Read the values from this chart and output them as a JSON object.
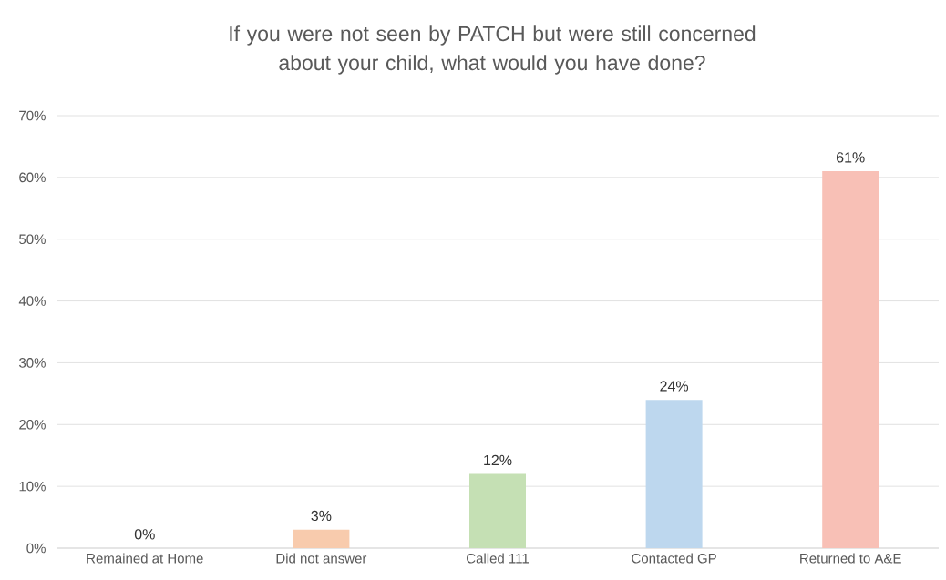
{
  "chart_data": {
    "type": "bar",
    "title": "If you were not seen by PATCH but were still concerned about your child, what would you have done?",
    "categories": [
      "Remained at Home",
      "Did not answer",
      "Called 111",
      "Contacted GP",
      "Returned to A&E"
    ],
    "values": [
      0,
      3,
      12,
      24,
      61
    ],
    "value_labels": [
      "0%",
      "3%",
      "12%",
      "24%",
      "61%"
    ],
    "colors": [
      "#bdd7ee",
      "#f8cbad",
      "#c5e0b4",
      "#bdd7ee",
      "#f8c0b6"
    ],
    "ylim": [
      0,
      70
    ],
    "yticks": [
      {
        "value": 0,
        "label": "0%"
      },
      {
        "value": 10,
        "label": "10%"
      },
      {
        "value": 20,
        "label": "20%"
      },
      {
        "value": 30,
        "label": "30%"
      },
      {
        "value": 40,
        "label": "40%"
      },
      {
        "value": 50,
        "label": "50%"
      },
      {
        "value": 60,
        "label": "60%"
      },
      {
        "value": 70,
        "label": "70%"
      }
    ],
    "grid": "y"
  }
}
